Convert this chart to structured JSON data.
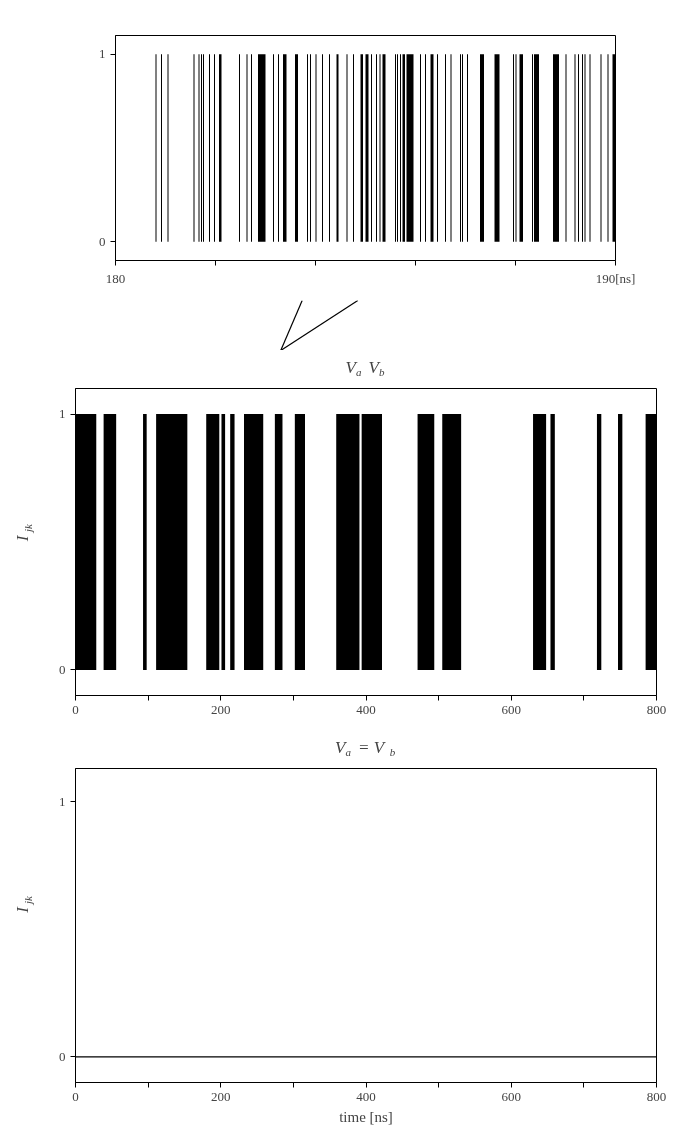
{
  "chart_data": [
    {
      "type": "area",
      "xlim": [
        180,
        190
      ],
      "ylim": [
        -0.1,
        1.1
      ],
      "xticks": [
        180,
        {
          "value": 182,
          "label": null
        },
        {
          "value": 184,
          "label": null
        },
        {
          "value": 186,
          "label": null
        },
        {
          "value": 188,
          "label": null
        },
        {
          "value": 190,
          "label": "190[ns]"
        }
      ],
      "yticks": [
        0,
        1
      ],
      "series": [
        {
          "color": "#000000",
          "x": [
            180,
            180.8,
            180.82,
            180.91,
            180.93,
            181.04,
            181.06,
            181.56,
            181.58,
            181.66,
            181.68,
            181.71,
            181.73,
            181.75,
            181.77,
            181.87,
            181.89,
            181.97,
            181.99,
            182.07,
            182.12,
            182.47,
            182.49,
            182.62,
            182.64,
            182.71,
            182.73,
            182.85,
            183.0,
            183.15,
            183.17,
            183.25,
            183.27,
            183.35,
            183.42,
            183.59,
            183.65,
            183.83,
            183.85,
            183.89,
            183.91,
            184.0,
            184.02,
            184.13,
            184.15,
            184.27,
            184.29,
            184.42,
            184.46,
            184.62,
            184.64,
            184.75,
            184.77,
            184.9,
            184.95,
            185.0,
            185.06,
            185.11,
            185.13,
            185.21,
            185.23,
            185.28,
            185.3,
            185.34,
            185.4,
            185.59,
            185.61,
            185.63,
            185.65,
            185.69,
            185.71,
            185.74,
            185.79,
            185.82,
            185.96,
            186.09,
            186.11,
            186.19,
            186.21,
            186.3,
            186.36,
            186.43,
            186.45,
            186.59,
            186.61,
            186.7,
            186.72,
            186.89,
            186.91,
            186.93,
            186.95,
            187.03,
            187.05,
            187.29,
            187.37,
            187.58,
            187.68,
            187.95,
            187.97,
            188.0,
            188.02,
            188.08,
            188.15,
            188.33,
            188.35,
            188.37,
            188.47,
            188.75,
            188.87,
            189.0,
            189.02,
            189.18,
            189.2,
            189.25,
            189.27,
            189.33,
            189.35,
            189.38,
            189.4,
            189.48,
            189.5,
            189.7,
            189.72,
            189.84,
            189.86,
            189.94,
            190
          ],
          "values": [
            0,
            1,
            0,
            1,
            0,
            1,
            0,
            1,
            0,
            1,
            0,
            1,
            0,
            1,
            0,
            1,
            0,
            1,
            0,
            1,
            0,
            1,
            0,
            1,
            0,
            1,
            0,
            1,
            0,
            1,
            0,
            1,
            0,
            1,
            0,
            1,
            0,
            1,
            0,
            1,
            0,
            1,
            0,
            1,
            0,
            1,
            0,
            1,
            0,
            1,
            0,
            1,
            0,
            1,
            0,
            1,
            0,
            1,
            0,
            1,
            0,
            1,
            0,
            1,
            0,
            1,
            0,
            1,
            0,
            1,
            0,
            1,
            0,
            1,
            0,
            1,
            0,
            1,
            0,
            1,
            0,
            1,
            0,
            1,
            0,
            1,
            0,
            1,
            0,
            1,
            0,
            1,
            0,
            1,
            0,
            1,
            0,
            1,
            0,
            1,
            0,
            1,
            0,
            1,
            0,
            1,
            0,
            1,
            0,
            1,
            0,
            1,
            0,
            1,
            0,
            1,
            0,
            1,
            0,
            1,
            0,
            1,
            0,
            1,
            0,
            1,
            0
          ]
        }
      ]
    },
    {
      "type": "area",
      "title": "V$_{a}$ V$_{b}$",
      "ylabel": "I$_{jk}$",
      "xlim": [
        0,
        800
      ],
      "ylim": [
        -0.1,
        1.1
      ],
      "xticks": [
        0,
        {
          "value": 100,
          "label": null
        },
        200,
        {
          "value": 300,
          "label": null
        },
        400,
        {
          "value": 500,
          "label": null
        },
        600,
        {
          "value": 700,
          "label": null
        },
        800
      ],
      "yticks": [
        0,
        1
      ],
      "series": [
        {
          "color": "#000000",
          "x": [
            0,
            28.6,
            38.7,
            56,
            93,
            98,
            111,
            154,
            180,
            198,
            201,
            206,
            213,
            219,
            232,
            258.5,
            274.5,
            285,
            302,
            316,
            359,
            391,
            394,
            422,
            471,
            494,
            505,
            531,
            630,
            648,
            654,
            660,
            718,
            724,
            747,
            753,
            785,
            800
          ],
          "values": [
            1,
            0,
            1,
            0,
            1,
            0,
            1,
            0,
            1,
            0,
            1,
            0,
            1,
            0,
            1,
            0,
            1,
            0,
            1,
            0,
            1,
            0,
            1,
            0,
            1,
            0,
            1,
            0,
            1,
            0,
            1,
            0,
            1,
            0,
            1,
            0,
            1,
            0
          ]
        }
      ]
    },
    {
      "type": "line",
      "title": "V$_{a}$ = V$_{b}$",
      "ylabel": "I$_{jk}$",
      "xlabel": "time [ns]",
      "xlim": [
        0,
        800
      ],
      "ylim": [
        -0.1,
        1.13
      ],
      "xticks": [
        0,
        {
          "value": 100,
          "label": null
        },
        200,
        {
          "value": 300,
          "label": null
        },
        400,
        {
          "value": 500,
          "label": null
        },
        600,
        {
          "value": 700,
          "label": null
        },
        800
      ],
      "yticks": [
        0,
        1
      ],
      "series": [
        {
          "color": "#000000",
          "x": [
            0,
            800
          ],
          "values": [
            0,
            0
          ]
        }
      ]
    }
  ]
}
